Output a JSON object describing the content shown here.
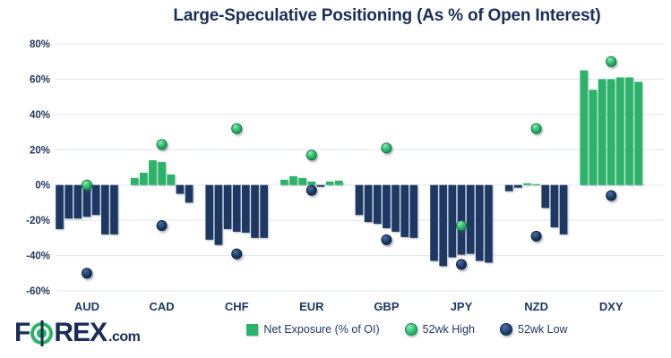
{
  "title": "Large-Speculative Positioning (As % of Open Interest)",
  "logo": {
    "prefix": "F",
    "suffix": "REX",
    "tld": ".com"
  },
  "legend": {
    "items": [
      {
        "label": "Net Exposure (% of OI)",
        "marker": "square",
        "color": "#2ab467"
      },
      {
        "label": "52wk High",
        "marker": "circle",
        "color": "#2ebd6f"
      },
      {
        "label": "52wk Low",
        "marker": "circle",
        "color": "#17375e"
      }
    ]
  },
  "colors": {
    "navy_bar": "#1f3864",
    "green_bar": "#2ab467",
    "green_dot": "#2ebd6f",
    "navy_dot": "#17375e",
    "gridline": "#dfe5ee",
    "axis_text": "#24365e",
    "title_text": "#1b2e58"
  },
  "chart_data": {
    "type": "bar",
    "title": "Large-Speculative Positioning (As % of Open Interest)",
    "categories": [
      "AUD",
      "CAD",
      "CHF",
      "EUR",
      "GBP",
      "JPY",
      "NZD",
      "DXY"
    ],
    "net_exposure_bars": {
      "AUD": [
        -25,
        -19,
        -19,
        -18,
        -17,
        -28,
        -28
      ],
      "CAD": [
        4,
        7,
        14,
        13,
        6,
        -5,
        -10
      ],
      "CHF": [
        -31,
        -34,
        -25,
        -26.5,
        -27,
        -30,
        -30
      ],
      "EUR": [
        3,
        5,
        4,
        2,
        -1,
        2,
        2.5
      ],
      "GBP": [
        -17,
        -21,
        -22,
        -24.5,
        -26.5,
        -29.5,
        -30
      ],
      "JPY": [
        -43,
        -46,
        -41,
        -39.5,
        -39,
        -43,
        -44
      ],
      "NZD": [
        -3.5,
        -1.5,
        1,
        0.5,
        -13,
        -24,
        -28
      ],
      "DXY": [
        65,
        54,
        60,
        60,
        61,
        61,
        58.5
      ]
    },
    "series": [
      {
        "name": "52wk High",
        "type": "scatter",
        "values": [
          0,
          23,
          32,
          17,
          21,
          -23,
          32,
          70
        ]
      },
      {
        "name": "52wk Low",
        "type": "scatter",
        "values": [
          -50,
          -23,
          -39,
          -3,
          -31,
          -45,
          -29,
          -6
        ]
      }
    ],
    "ylim": [
      -60,
      80
    ],
    "ytick_step": 20,
    "ytick_labels": [
      "80%",
      "60%",
      "40%",
      "20%",
      "0%",
      "-20%",
      "-40%",
      "-60%"
    ],
    "grid": true,
    "legend_position": "bottom"
  }
}
